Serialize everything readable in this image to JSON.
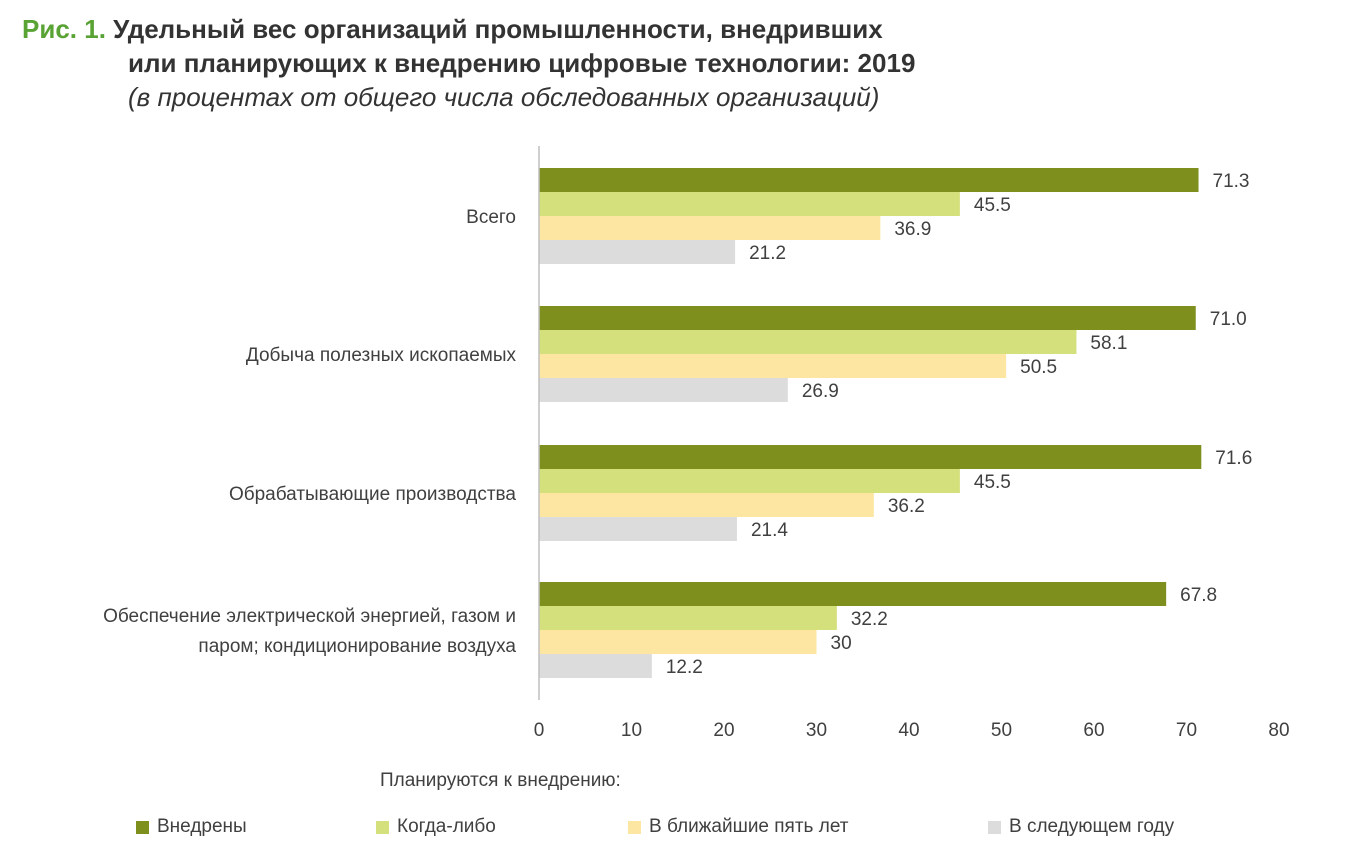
{
  "title": {
    "fig_no": "Рис. 1.",
    "line1": "Удельный вес организаций промышленности, внедривших",
    "line2": "или планирующих к внедрению цифровые технологии: 2019",
    "subtitle": "(в процентах от общего числа обследованных организаций)"
  },
  "legend_title": "Планируются к внедрению:",
  "chart_data": {
    "type": "bar",
    "orientation": "horizontal",
    "categories": [
      [
        "Всего"
      ],
      [
        "Добыча полезных ископаемых"
      ],
      [
        "Обрабатывающие производства"
      ],
      [
        "Обеспечение электрической энергией, газом и",
        "паром; кондиционирование воздуха"
      ]
    ],
    "series": [
      {
        "name": "Внедрены",
        "color": "#7e8f1e",
        "values": [
          71.3,
          71.0,
          71.6,
          67.8
        ],
        "labels": [
          "71.3",
          "71.0",
          "71.6",
          "67.8"
        ]
      },
      {
        "name": "Когда-либо",
        "color": "#d3e07c",
        "values": [
          45.5,
          58.1,
          45.5,
          32.2
        ],
        "labels": [
          "45.5",
          "58.1",
          "45.5",
          "32.2"
        ]
      },
      {
        "name": "В ближайшие пять лет",
        "color": "#fde6a2",
        "values": [
          36.9,
          50.5,
          36.2,
          30
        ],
        "labels": [
          "36.9",
          "50.5",
          "36.2",
          "30"
        ]
      },
      {
        "name": "В следующем году",
        "color": "#dcdcdc",
        "values": [
          21.2,
          26.9,
          21.4,
          12.2
        ],
        "labels": [
          "21.2",
          "26.9",
          "21.4",
          "12.2"
        ]
      }
    ],
    "xlim": [
      0,
      80
    ],
    "xticks": [
      "0",
      "10",
      "20",
      "30",
      "40",
      "50",
      "60",
      "70",
      "80"
    ],
    "grid": false,
    "legend_position": "bottom"
  }
}
